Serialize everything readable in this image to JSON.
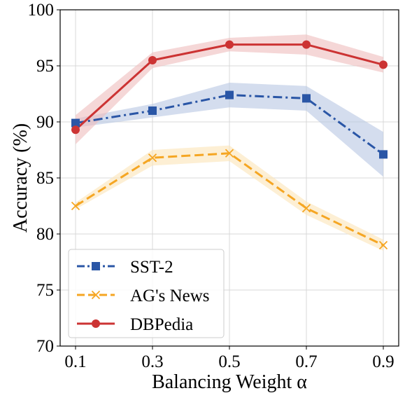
{
  "chart_data": {
    "type": "line",
    "title": "",
    "xlabel": "Balancing Weight α",
    "ylabel": "Accuracy (%)",
    "x": [
      0.1,
      0.3,
      0.5,
      0.7,
      0.9
    ],
    "x_tick_labels": [
      "0.1",
      "0.3",
      "0.5",
      "0.7",
      "0.9"
    ],
    "xlim": [
      0.06,
      0.94
    ],
    "ylim": [
      70,
      100
    ],
    "y_ticks": [
      70,
      75,
      80,
      85,
      90,
      95,
      100
    ],
    "y_tick_labels": [
      "70",
      "75",
      "80",
      "85",
      "90",
      "95",
      "100"
    ],
    "grid": true,
    "legend_position": "lower-left",
    "series": [
      {
        "name": "SST-2",
        "values": [
          89.9,
          91.0,
          92.4,
          92.1,
          87.1
        ],
        "band_lower": [
          89.5,
          90.4,
          91.3,
          91.0,
          85.1
        ],
        "band_upper": [
          90.3,
          91.6,
          93.5,
          93.2,
          89.1
        ],
        "color": "#2a56a6",
        "band_color": "#b7c6e3",
        "line_style": "dashdot",
        "marker": "square"
      },
      {
        "name": "AG's News",
        "values": [
          82.5,
          86.8,
          87.2,
          82.3,
          79.0
        ],
        "band_lower": [
          82.2,
          86.1,
          86.5,
          81.7,
          78.5
        ],
        "band_upper": [
          82.8,
          87.5,
          87.9,
          82.9,
          79.5
        ],
        "color": "#f5a623",
        "band_color": "#fce4b8",
        "line_style": "dashed",
        "marker": "x"
      },
      {
        "name": "DBPedia",
        "values": [
          89.3,
          95.5,
          96.9,
          96.9,
          95.1
        ],
        "band_lower": [
          88.0,
          94.8,
          96.3,
          96.0,
          94.4
        ],
        "band_upper": [
          90.6,
          96.2,
          97.5,
          97.8,
          95.8
        ],
        "color": "#cc3333",
        "band_color": "#efbcbc",
        "line_style": "solid",
        "marker": "circle"
      }
    ]
  }
}
